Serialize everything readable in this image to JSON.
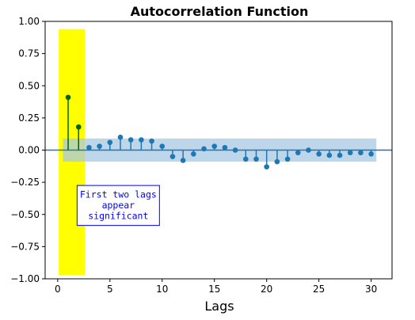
{
  "chart_data": {
    "type": "stem",
    "title": "Autocorrelation Function",
    "xlabel": "Lags",
    "ylabel": "",
    "xlim": [
      -1.2,
      32
    ],
    "ylim": [
      -1.0,
      1.0
    ],
    "xticks": [
      0,
      5,
      10,
      15,
      20,
      25,
      30
    ],
    "xtick_labels": [
      "0",
      "5",
      "10",
      "15",
      "20",
      "25",
      "30"
    ],
    "yticks": [
      -1.0,
      -0.75,
      -0.5,
      -0.25,
      0.0,
      0.25,
      0.5,
      0.75,
      1.0
    ],
    "ytick_labels": [
      "−1.00",
      "−0.75",
      "−0.50",
      "−0.25",
      "0.00",
      "0.25",
      "0.50",
      "0.75",
      "1.00"
    ],
    "lags": [
      1,
      2,
      3,
      4,
      5,
      6,
      7,
      8,
      9,
      10,
      11,
      12,
      13,
      14,
      15,
      16,
      17,
      18,
      19,
      20,
      21,
      22,
      23,
      24,
      25,
      26,
      27,
      28,
      29,
      30
    ],
    "values": [
      0.41,
      0.18,
      0.02,
      0.03,
      0.06,
      0.1,
      0.08,
      0.08,
      0.07,
      0.03,
      -0.05,
      -0.08,
      -0.03,
      0.01,
      0.03,
      0.02,
      0.0,
      -0.07,
      -0.07,
      -0.13,
      -0.09,
      -0.07,
      -0.02,
      0.0,
      -0.03,
      -0.04,
      -0.04,
      -0.02,
      -0.02,
      -0.03
    ],
    "confidence_band": {
      "x_range": [
        0.5,
        30.5
      ],
      "upper": 0.09,
      "lower": -0.09,
      "color": "#a8c8e3"
    },
    "highlight": {
      "x_range": [
        0.1,
        2.6
      ],
      "y_range": [
        -0.97,
        0.94
      ],
      "color": "#ffff00"
    },
    "annotation": {
      "lines": [
        "First two lags",
        "appear",
        "significant"
      ],
      "anchor_x": 5.8,
      "anchor_y": -0.43,
      "text_color": "#0000ff",
      "border_color": "#0000ff"
    },
    "colors": {
      "stem": "#1f77b4",
      "highlight_stem": "#006400",
      "baseline": "#1f77b4"
    },
    "grid": false
  }
}
